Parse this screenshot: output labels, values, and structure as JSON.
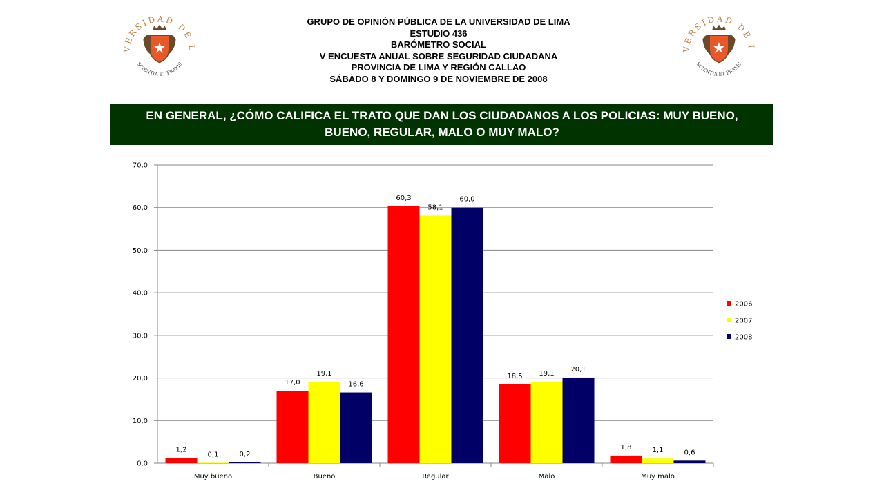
{
  "header": {
    "lines": [
      "GRUPO DE OPINIÓN PÚBLICA DE LA UNIVERSIDAD DE LIMA",
      "ESTUDIO 436",
      "BARÓMETRO SOCIAL",
      "V ENCUESTA ANUAL SOBRE SEGURIDAD CIUDADANA",
      "PROVINCIA DE LIMA Y REGIÓN CALLAO",
      "SÁBADO 8 Y DOMINGO 9 DE NOVIEMBRE DE 2008"
    ]
  },
  "logo": {
    "ring_text": "UNIVERSIDAD DE LIMA",
    "motto": "SCIENTIA ET PRAXIS",
    "colors": {
      "gold": "#b8864a",
      "orange": "#e8582a",
      "dark": "#6b4a2a"
    }
  },
  "question": "EN GENERAL, ¿CÓMO CALIFICA EL TRATO QUE DAN LOS CIUDADANOS A LOS POLICIAS: MUY BUENO, BUENO, REGULAR, MALO O MUY MALO?",
  "colors": {
    "question_bg": "#003300",
    "s2006": "#ff0000",
    "s2007": "#ffff00",
    "s2008": "#000066"
  },
  "chart_data": {
    "type": "bar",
    "title": "",
    "xlabel": "",
    "ylabel": "",
    "categories": [
      "Muy bueno",
      "Bueno",
      "Regular",
      "Malo",
      "Muy malo"
    ],
    "series": [
      {
        "name": "2006",
        "values": [
          1.2,
          17.0,
          60.3,
          18.5,
          1.8
        ],
        "labels": [
          "1,2",
          "17,0",
          "60,3",
          "18,5",
          "1,8"
        ],
        "color": "#ff0000"
      },
      {
        "name": "2007",
        "values": [
          0.1,
          19.1,
          58.1,
          19.1,
          1.1
        ],
        "labels": [
          "0,1",
          "19,1",
          "58,1",
          "19,1",
          "1,1"
        ],
        "color": "#ffff00"
      },
      {
        "name": "2008",
        "values": [
          0.2,
          16.6,
          60.0,
          20.1,
          0.6
        ],
        "labels": [
          "0,2",
          "16,6",
          "60,0",
          "20,1",
          "0,6"
        ],
        "color": "#000066"
      }
    ],
    "ylim": [
      0,
      70
    ],
    "yticks": [
      0,
      10,
      20,
      30,
      40,
      50,
      60,
      70
    ],
    "ytick_labels": [
      "0,0",
      "10,0",
      "20,0",
      "30,0",
      "40,0",
      "50,0",
      "60,0",
      "70,0"
    ],
    "grid": true,
    "legend_position": "right"
  }
}
